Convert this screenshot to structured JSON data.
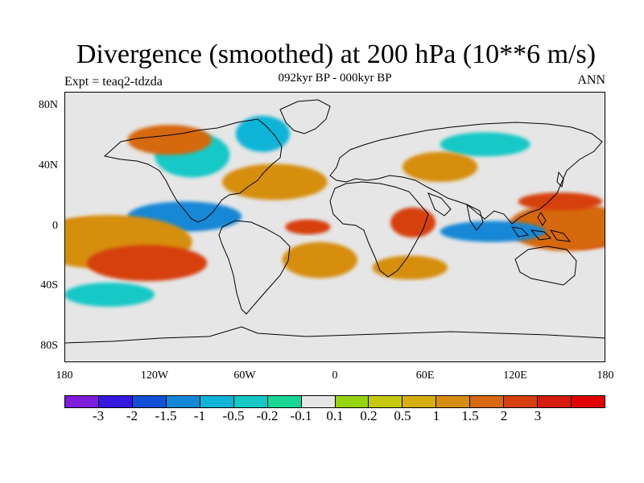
{
  "title": "Divergence (smoothed) at 200 hPa (10**6 m/s)",
  "subtitle": "092kyr BP - 000kyr BP",
  "expt_label": "Expt = teaq2-tdzda",
  "season": "ANN",
  "map": {
    "projection": "cylindrical equidistant",
    "lon_range": [
      -180,
      180
    ],
    "lat_range": [
      -90,
      90
    ],
    "lat_ticks": [
      "80N",
      "40N",
      "0",
      "40S",
      "80S"
    ],
    "lon_ticks": [
      "180",
      "120W",
      "60W",
      "0",
      "60E",
      "120E",
      "180"
    ],
    "ocean_background": "#e6e6e6",
    "coastline_color": "#000000",
    "fields": [
      {
        "name": "east-pacific-convergence",
        "lon": -95,
        "lat": 5,
        "rx": 20,
        "ry": 6,
        "level": 1
      },
      {
        "name": "east-pacific-convergence-outer",
        "lon": -100,
        "lat": 7,
        "rx": 38,
        "ry": 10,
        "level": 3
      },
      {
        "name": "central-pacific-divergence",
        "lon": -165,
        "lat": -5,
        "rx": 25,
        "ry": 10,
        "level": 14
      },
      {
        "name": "central-pacific-divergence-outer",
        "lon": -150,
        "lat": -10,
        "rx": 55,
        "ry": 18,
        "level": 11
      },
      {
        "name": "south-pacific-divergence",
        "lon": -125,
        "lat": -24,
        "rx": 40,
        "ry": 12,
        "level": 13
      },
      {
        "name": "west-pacific-divergence",
        "lon": 165,
        "lat": -5,
        "rx": 25,
        "ry": 9,
        "level": 15
      },
      {
        "name": "west-pacific-divergence-outer",
        "lon": 155,
        "lat": 0,
        "rx": 40,
        "ry": 16,
        "level": 12
      },
      {
        "name": "north-pacific-divergence",
        "lon": 150,
        "lat": 17,
        "rx": 28,
        "ry": 6,
        "level": 13
      },
      {
        "name": "maritime-convergence",
        "lon": 105,
        "lat": -3,
        "rx": 35,
        "ry": 7,
        "level": 3
      },
      {
        "name": "africa-divergence",
        "lon": 52,
        "lat": 3,
        "rx": 15,
        "ry": 10,
        "level": 13
      },
      {
        "name": "atlantic-divergence",
        "lon": -18,
        "lat": 0,
        "rx": 15,
        "ry": 5,
        "level": 13
      },
      {
        "name": "south-atlantic-band",
        "lon": -10,
        "lat": -22,
        "rx": 25,
        "ry": 12,
        "level": 11
      },
      {
        "name": "southern-indian-band",
        "lon": 50,
        "lat": -27,
        "rx": 25,
        "ry": 8,
        "level": 11
      },
      {
        "name": "north-atlantic-band",
        "lon": -40,
        "lat": 30,
        "rx": 35,
        "ry": 12,
        "level": 11
      },
      {
        "name": "north-america-convergence",
        "lon": -95,
        "lat": 48,
        "rx": 25,
        "ry": 15,
        "level": 5
      },
      {
        "name": "canada-divergence",
        "lon": -110,
        "lat": 58,
        "rx": 28,
        "ry": 10,
        "level": 12
      },
      {
        "name": "greenland-convergence",
        "lon": -48,
        "lat": 62,
        "rx": 18,
        "ry": 12,
        "level": 4
      },
      {
        "name": "southern-ocean-convergence",
        "lon": -150,
        "lat": -45,
        "rx": 30,
        "ry": 8,
        "level": 5
      },
      {
        "name": "siberia-convergence",
        "lon": 100,
        "lat": 55,
        "rx": 30,
        "ry": 8,
        "level": 5
      },
      {
        "name": "asia-divergence",
        "lon": 70,
        "lat": 40,
        "rx": 25,
        "ry": 10,
        "level": 11
      }
    ]
  },
  "colorbar": {
    "colors": [
      "#7d1cdc",
      "#3418e0",
      "#1450d6",
      "#1288d6",
      "#10b4d6",
      "#14c8c6",
      "#1ad694",
      "#e6e6e6",
      "#96d40e",
      "#c6c80e",
      "#d6ae10",
      "#d68e10",
      "#d66810",
      "#d64010",
      "#d61c10",
      "#e00000"
    ],
    "labels": [
      "-3",
      "-2",
      "-1.5",
      "-1",
      "-0.5",
      "-0.2",
      "-0.1",
      "0.1",
      "0.2",
      "0.5",
      "1",
      "1.5",
      "2",
      "3"
    ]
  }
}
